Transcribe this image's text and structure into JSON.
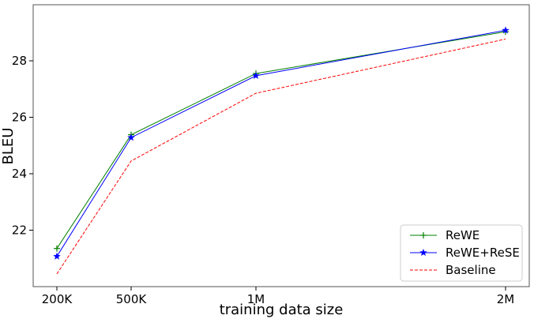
{
  "chart_data": {
    "type": "line",
    "xlabel": "training data size",
    "ylabel": "BLEU",
    "x_ticks": [
      "200K",
      "500K",
      "1M",
      "2M"
    ],
    "y_ticks": [
      "22",
      "24",
      "26",
      "28"
    ],
    "ylim": [
      20.0,
      29.8
    ],
    "grid": false,
    "legend_position": "lower-right",
    "series": [
      {
        "name": "ReWE",
        "color": "#008000",
        "linestyle": "solid",
        "marker": "plus",
        "values": [
          21.35,
          25.38,
          27.55,
          29.03
        ]
      },
      {
        "name": "ReWE+ReSE",
        "color": "#0000ff",
        "linestyle": "solid",
        "marker": "star",
        "values": [
          21.07,
          25.28,
          27.47,
          29.08
        ]
      },
      {
        "name": "Baseline",
        "color": "#ff0000",
        "linestyle": "dashed",
        "marker": "none",
        "values": [
          20.45,
          24.45,
          26.85,
          28.77
        ]
      }
    ]
  }
}
